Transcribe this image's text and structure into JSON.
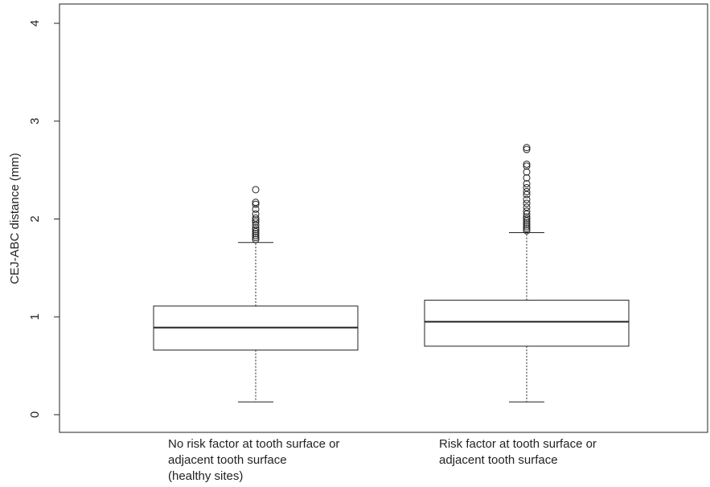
{
  "chart_data": {
    "type": "boxplot",
    "title": "",
    "xlabel": "",
    "ylabel": "CEJ-ABC distance (mm)",
    "ylim": [
      0,
      4
    ],
    "yticks": [
      "0",
      "1",
      "2",
      "3",
      "4"
    ],
    "ytick_values": [
      0,
      1,
      2,
      3,
      4
    ],
    "grid": false,
    "categories": [
      [
        "No risk factor at tooth surface or",
        "adjacent tooth surface",
        "(healthy sites)"
      ],
      [
        "Risk factor at tooth surface or",
        "adjacent tooth surface"
      ]
    ],
    "boxes": [
      {
        "whisker_low": 0.13,
        "q1": 0.66,
        "median": 0.89,
        "q3": 1.11,
        "whisker_high": 1.76,
        "outliers": [
          1.79,
          1.81,
          1.83,
          1.85,
          1.87,
          1.89,
          1.91,
          1.94,
          1.97,
          1.99,
          2.01,
          2.05,
          2.1,
          2.15,
          2.17,
          2.3
        ]
      },
      {
        "whisker_low": 0.13,
        "q1": 0.7,
        "median": 0.95,
        "q3": 1.17,
        "whisker_high": 1.86,
        "outliers": [
          1.88,
          1.9,
          1.92,
          1.94,
          1.96,
          1.98,
          2.0,
          2.02,
          2.05,
          2.08,
          2.12,
          2.16,
          2.2,
          2.25,
          2.28,
          2.32,
          2.36,
          2.42,
          2.48,
          2.54,
          2.56,
          2.71,
          2.73
        ]
      }
    ]
  }
}
